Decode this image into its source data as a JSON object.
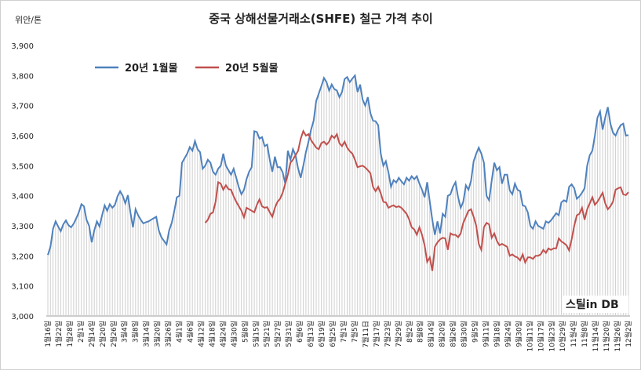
{
  "chart_data": {
    "type": "area",
    "title": "중국 상해선물거래소(SHFE) 철근 가격 추이",
    "unit_label": "위안/톤",
    "ylim": [
      3000,
      3900
    ],
    "yticks": [
      "3,000",
      "3,100",
      "3,200",
      "3,300",
      "3,400",
      "3,500",
      "3,600",
      "3,700",
      "3,800",
      "3,900"
    ],
    "xtick_labels": [
      "1월16일",
      "1월22일",
      "1월28일",
      "2월1일",
      "2월14일",
      "2월20일",
      "2월26일",
      "3월4일",
      "3월8일",
      "3월14일",
      "3월20일",
      "3월26일",
      "4월1일",
      "4월6일",
      "4월12일",
      "4월18일",
      "4월24일",
      "4월30일",
      "5월8일",
      "5월15일",
      "5월21일",
      "5월27일",
      "5월31일",
      "6월6일",
      "6월13일",
      "6월19일",
      "6월25일",
      "7월1일",
      "7월5일",
      "7월11日",
      "7월17일",
      "7월23일",
      "7월29일",
      "8월2일",
      "8월8일",
      "8월14일",
      "8월20일",
      "8월26일",
      "8월30일",
      "9월5일",
      "9월11일",
      "9월18일",
      "9월24일",
      "9월30일",
      "10월11일",
      "10월17일",
      "10월23일",
      "10월29일",
      "11월4일",
      "11월8일",
      "11월14일",
      "11월20일",
      "11월26일",
      "12월2일"
    ],
    "series": [
      {
        "name": "20년 1월물",
        "color": "#4f81bd",
        "values": [
          3203,
          3230,
          3290,
          3315,
          3297,
          3282,
          3305,
          3318,
          3302,
          3295,
          3307,
          3325,
          3345,
          3372,
          3365,
          3320,
          3300,
          3245,
          3285,
          3315,
          3298,
          3335,
          3368,
          3350,
          3372,
          3360,
          3370,
          3398,
          3415,
          3400,
          3375,
          3402,
          3345,
          3295,
          3355,
          3335,
          3320,
          3308,
          3312,
          3315,
          3320,
          3325,
          3330,
          3285,
          3262,
          3250,
          3238,
          3285,
          3310,
          3350,
          3395,
          3400,
          3510,
          3525,
          3540,
          3562,
          3550,
          3582,
          3555,
          3545,
          3490,
          3500,
          3520,
          3510,
          3480,
          3470,
          3490,
          3500,
          3540,
          3500,
          3485,
          3470,
          3490,
          3460,
          3428,
          3405,
          3420,
          3455,
          3480,
          3495,
          3615,
          3612,
          3590,
          3595,
          3565,
          3570,
          3520,
          3480,
          3530,
          3495,
          3495,
          3478,
          3440,
          3550,
          3520,
          3555,
          3535,
          3490,
          3460,
          3500,
          3545,
          3580,
          3620,
          3650,
          3715,
          3740,
          3765,
          3792,
          3778,
          3750,
          3770,
          3755,
          3750,
          3728,
          3745,
          3788,
          3795,
          3778,
          3790,
          3800,
          3745,
          3770,
          3720,
          3700,
          3728,
          3675,
          3650,
          3648,
          3635,
          3540,
          3500,
          3515,
          3478,
          3430,
          3452,
          3444,
          3460,
          3448,
          3438,
          3460,
          3450,
          3465,
          3455,
          3465,
          3440,
          3420,
          3395,
          3445,
          3380,
          3320,
          3270,
          3315,
          3275,
          3340,
          3330,
          3400,
          3405,
          3430,
          3445,
          3395,
          3360,
          3380,
          3435,
          3420,
          3450,
          3515,
          3540,
          3560,
          3540,
          3510,
          3400,
          3385,
          3450,
          3510,
          3485,
          3495,
          3440,
          3470,
          3470,
          3418,
          3405,
          3440,
          3420,
          3415,
          3368,
          3365,
          3345,
          3300,
          3290,
          3315,
          3300,
          3295,
          3290,
          3315,
          3310,
          3318,
          3330,
          3342,
          3335,
          3378,
          3385,
          3380,
          3430,
          3438,
          3425,
          3390,
          3398,
          3410,
          3425,
          3500,
          3535,
          3550,
          3600,
          3660,
          3680,
          3620,
          3660,
          3695,
          3640,
          3610,
          3600,
          3620,
          3635,
          3640,
          3600,
          3602
        ]
      },
      {
        "name": "20년 5월물",
        "color": "#c0504d",
        "values": [
          3310,
          3320,
          3340,
          3345,
          3380,
          3445,
          3440,
          3420,
          3435,
          3422,
          3420,
          3398,
          3380,
          3365,
          3350,
          3328,
          3360,
          3355,
          3350,
          3345,
          3370,
          3388,
          3365,
          3360,
          3362,
          3345,
          3330,
          3360,
          3380,
          3390,
          3410,
          3440,
          3470,
          3510,
          3520,
          3535,
          3550,
          3590,
          3615,
          3600,
          3605,
          3585,
          3572,
          3560,
          3555,
          3575,
          3580,
          3570,
          3580,
          3600,
          3592,
          3605,
          3575,
          3565,
          3580,
          3560,
          3548,
          3540,
          3520,
          3495,
          3498,
          3500,
          3494,
          3485,
          3475,
          3430,
          3415,
          3430,
          3408,
          3380,
          3378,
          3360,
          3365,
          3368,
          3362,
          3365,
          3360,
          3350,
          3340,
          3322,
          3295,
          3288,
          3270,
          3295,
          3270,
          3235,
          3180,
          3195,
          3150,
          3230,
          3245,
          3255,
          3260,
          3258,
          3220,
          3275,
          3270,
          3270,
          3262,
          3275,
          3310,
          3330,
          3350,
          3355,
          3330,
          3300,
          3240,
          3220,
          3295,
          3310,
          3305,
          3260,
          3275,
          3250,
          3235,
          3240,
          3235,
          3230,
          3200,
          3205,
          3198,
          3195,
          3185,
          3205,
          3178,
          3195,
          3195,
          3190,
          3200,
          3200,
          3205,
          3220,
          3210,
          3225,
          3220,
          3225,
          3225,
          3258,
          3248,
          3242,
          3235,
          3218,
          3255,
          3300,
          3335,
          3340,
          3360,
          3320,
          3355,
          3375,
          3395,
          3370,
          3380,
          3395,
          3410,
          3375,
          3355,
          3365,
          3380,
          3420,
          3425,
          3428,
          3405,
          3402,
          3412
        ]
      }
    ],
    "legend": {
      "placement": "top-left"
    },
    "grid": false,
    "brand": "스틸in DB"
  }
}
